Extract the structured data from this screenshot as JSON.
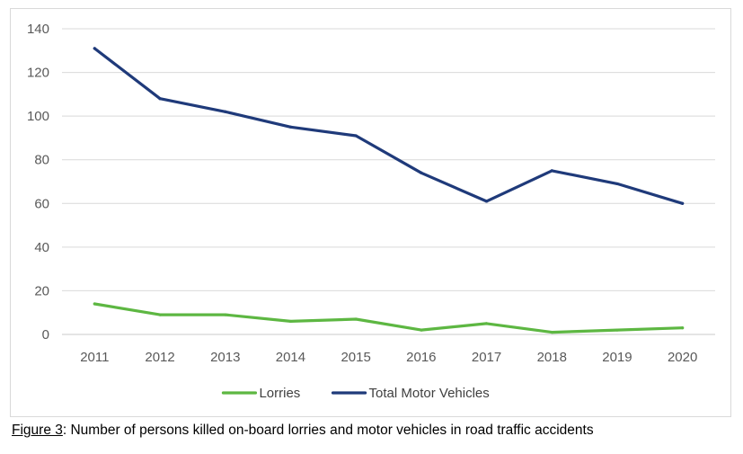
{
  "caption": {
    "ref": "Figure 3",
    "text": ": Number of persons killed on-board lorries and motor vehicles in road traffic accidents"
  },
  "chart_data": {
    "type": "line",
    "x": [
      "2011",
      "2012",
      "2013",
      "2014",
      "2015",
      "2016",
      "2017",
      "2018",
      "2019",
      "2020"
    ],
    "series": [
      {
        "name": "Lorries",
        "color": "#5db742",
        "values": [
          14,
          9,
          9,
          6,
          7,
          2,
          5,
          1,
          2,
          3
        ]
      },
      {
        "name": "Total Motor Vehicles",
        "color": "#1f3a7a",
        "values": [
          131,
          108,
          102,
          95,
          91,
          74,
          61,
          75,
          69,
          60
        ]
      }
    ],
    "ylim": [
      0,
      140
    ],
    "yticks": [
      0,
      20,
      40,
      60,
      80,
      100,
      120,
      140
    ],
    "grid": true,
    "legend": "bottom"
  }
}
